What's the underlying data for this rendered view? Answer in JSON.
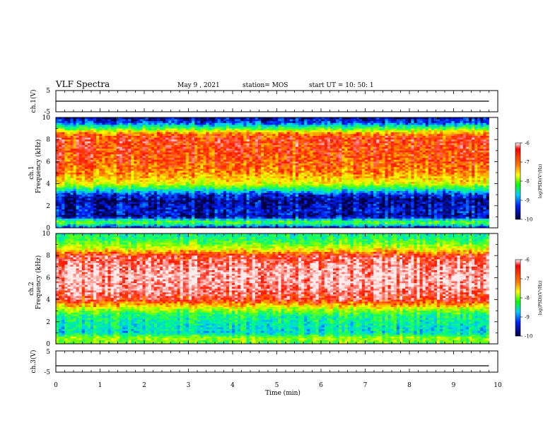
{
  "header": {
    "title": "VLF Spectra",
    "date": "May 9 , 2021",
    "station": "station= MOS",
    "start": "start UT = 10: 50: 1"
  },
  "panels": {
    "ch1v": {
      "ylabel": "ch.1(V)",
      "yticks": [
        "5",
        "-5"
      ]
    },
    "ch1": {
      "ylabel_a": "ch.1",
      "ylabel_b": "Frequency (kHz)",
      "yticks": [
        "10",
        "8",
        "6",
        "4",
        "2",
        "0"
      ]
    },
    "ch2": {
      "ylabel_a": "ch.2",
      "ylabel_b": "Frequency (kHz)",
      "yticks": [
        "10",
        "8",
        "6",
        "4",
        "2",
        "0"
      ]
    },
    "ch3v": {
      "ylabel": "ch.3(V)",
      "yticks": [
        "5",
        "-5"
      ]
    }
  },
  "colorbar": {
    "label": "log(PSD)(V²/Hz)",
    "ticks": [
      "-6",
      "-7",
      "-8",
      "-9",
      "-10"
    ],
    "colors": [
      "#ff0000",
      "#ff8000",
      "#ffff00",
      "#00ff00",
      "#00c0ff",
      "#0000ff",
      "#000060"
    ]
  },
  "xaxis": {
    "label": "Time (min)",
    "ticks": [
      "0",
      "1",
      "2",
      "3",
      "4",
      "5",
      "6",
      "7",
      "8",
      "9",
      "10"
    ]
  },
  "chart_data": [
    {
      "type": "line",
      "title": "",
      "ylabel": "ch.1(V)",
      "xlim": [
        0,
        10
      ],
      "ylim": [
        -5,
        5
      ],
      "series": [
        {
          "values": [
            [
              0,
              0
            ],
            [
              2,
              0
            ],
            [
              4,
              0
            ],
            [
              6,
              0
            ],
            [
              8,
              0
            ],
            [
              9.8,
              0
            ]
          ]
        }
      ]
    },
    {
      "type": "heatmap",
      "ylabel": "ch.1 Frequency (kHz)",
      "xlabel": "Time (min)",
      "xlim": [
        0,
        10
      ],
      "ylim": [
        0,
        10
      ],
      "clim": [
        -10,
        -6
      ],
      "profile": {
        "freq_khz": [
          0,
          0.5,
          1,
          1.5,
          2,
          2.5,
          3,
          3.5,
          4,
          5,
          6,
          7,
          8,
          8.5,
          9,
          9.5,
          10
        ],
        "log_psd": [
          -9.6,
          -8.0,
          -9.8,
          -9.6,
          -9.7,
          -9.8,
          -9.5,
          -8.6,
          -7.6,
          -7.0,
          -6.8,
          -6.7,
          -6.6,
          -6.9,
          -8.2,
          -9.4,
          -9.8
        ]
      }
    },
    {
      "type": "heatmap",
      "ylabel": "ch.2 Frequency (kHz)",
      "xlabel": "Time (min)",
      "xlim": [
        0,
        10
      ],
      "ylim": [
        0,
        10
      ],
      "clim": [
        -10,
        -6
      ],
      "profile": {
        "freq_khz": [
          0,
          0.5,
          1,
          1.5,
          2,
          2.5,
          3,
          3.5,
          4,
          5,
          6,
          7,
          8,
          8.5,
          9,
          9.5,
          10
        ],
        "log_psd": [
          -8.2,
          -7.8,
          -8.8,
          -8.7,
          -8.6,
          -8.5,
          -8.0,
          -7.2,
          -6.5,
          -6.2,
          -6.1,
          -6.2,
          -6.5,
          -7.4,
          -8.0,
          -8.4,
          -8.6
        ]
      }
    },
    {
      "type": "line",
      "title": "",
      "ylabel": "ch.3(V)",
      "xlim": [
        0,
        10
      ],
      "ylim": [
        -5,
        5
      ],
      "series": [
        {
          "values": [
            [
              0,
              -2
            ],
            [
              2,
              -2
            ],
            [
              4,
              -2
            ],
            [
              6,
              -2
            ],
            [
              8,
              -2
            ],
            [
              9.8,
              -2
            ]
          ]
        }
      ]
    }
  ]
}
